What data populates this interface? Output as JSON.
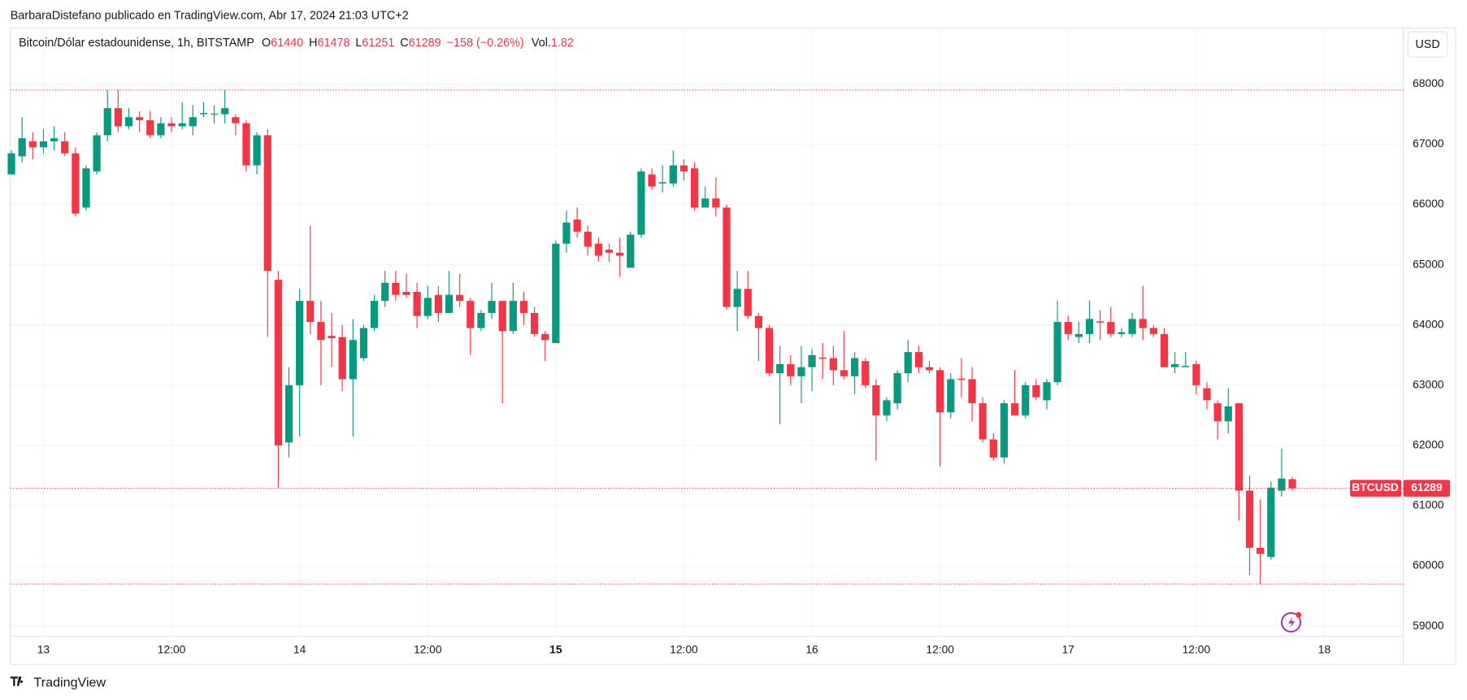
{
  "header": {
    "publisher": "BarbaraDistefano publicado en TradingView.com, Abr 17, 2024 21:03 UTC+2"
  },
  "legend": {
    "symbol": "Bitcoin/Dólar estadounidense, 1h, BITSTAMP",
    "o": "O",
    "h": "H",
    "l": "L",
    "c": "C",
    "change": "−158 (−0.26%)",
    "vol_label": "Vol.",
    "vol": 1.82
  },
  "currency_button": "USD",
  "ticker": "BTCUSD",
  "footer": "TradingView",
  "chart_data": {
    "type": "candlestick",
    "up_color": "#089981",
    "down_color": "#f23645",
    "open": [
      66500,
      66800,
      67050,
      66950,
      67050,
      67050,
      66850,
      65950,
      66550,
      67150,
      67600,
      67300,
      67450,
      67400,
      67150,
      67350,
      67300,
      67300,
      67500,
      67500,
      67500,
      67450,
      67350,
      66650,
      67150,
      64750,
      62050,
      63000,
      64400,
      64050,
      63820,
      63800,
      63100,
      63450,
      63950,
      64400,
      64700,
      64550,
      64550,
      64150,
      64500,
      64200,
      64500,
      64400,
      63950,
      64200,
      64400,
      63900,
      64400,
      64200,
      63850,
      63700,
      65350,
      65750,
      65550,
      65350,
      65250,
      65200,
      64950,
      65500,
      66500,
      66350,
      66350,
      66650,
      66600,
      65950,
      66100,
      65950,
      64300,
      64600,
      64150,
      63950,
      63200,
      63350,
      63150,
      63300,
      63460,
      63450,
      63250,
      63150,
      63400,
      63000,
      62500,
      62700,
      63200,
      63550,
      63300,
      63250,
      62550,
      63110,
      63100,
      62700,
      62100,
      61800,
      62700,
      62500,
      63000,
      62750,
      63050,
      64050,
      63800,
      63850,
      64060,
      64050,
      63850,
      63850,
      64100,
      63950,
      63850,
      63300,
      63300,
      63350,
      62950,
      62700,
      62400,
      62700,
      61250,
      60300,
      60150,
      61250,
      61440
    ],
    "high": [
      66900,
      67450,
      67200,
      67250,
      67300,
      67200,
      66950,
      66650,
      67200,
      67900,
      67900,
      67600,
      67550,
      67550,
      67450,
      67450,
      67700,
      67650,
      67700,
      67650,
      67900,
      67500,
      67400,
      67200,
      67250,
      64900,
      63300,
      64600,
      65650,
      64400,
      64200,
      64000,
      64100,
      64000,
      64500,
      64900,
      64900,
      64850,
      64700,
      64650,
      64650,
      64900,
      64850,
      64450,
      64250,
      64700,
      64400,
      64700,
      64550,
      64300,
      63900,
      65400,
      65900,
      65950,
      65650,
      65450,
      65350,
      65450,
      65550,
      66600,
      66600,
      66650,
      66900,
      66750,
      66700,
      66300,
      66450,
      66000,
      64900,
      64900,
      64200,
      64000,
      63650,
      63500,
      63650,
      63600,
      63700,
      63650,
      63900,
      63550,
      63450,
      63100,
      62800,
      63250,
      63750,
      63650,
      63400,
      63300,
      63200,
      63450,
      63300,
      62800,
      62200,
      62750,
      63250,
      63050,
      63100,
      63100,
      64400,
      64150,
      64050,
      64400,
      64250,
      64300,
      63950,
      64200,
      64650,
      64000,
      63950,
      63550,
      63550,
      63400,
      63050,
      62750,
      62950,
      62700,
      61500,
      61100,
      61400,
      61950,
      61478
    ],
    "low": [
      66500,
      66700,
      66750,
      66850,
      66900,
      66800,
      65800,
      65900,
      66500,
      67050,
      67200,
      67250,
      67200,
      67100,
      67100,
      67200,
      67250,
      67150,
      67450,
      67350,
      67350,
      67150,
      66550,
      66500,
      63800,
      61300,
      61800,
      62150,
      63850,
      63000,
      63300,
      62900,
      62150,
      63400,
      63900,
      64300,
      64400,
      64450,
      63950,
      64100,
      64050,
      64200,
      64300,
      63500,
      63900,
      64100,
      62700,
      63850,
      64000,
      63800,
      63400,
      63700,
      65200,
      65450,
      65150,
      65050,
      65050,
      64800,
      64950,
      65450,
      66250,
      66200,
      66300,
      66400,
      65900,
      65950,
      65800,
      64250,
      63900,
      64100,
      63400,
      63150,
      62350,
      63000,
      62700,
      62900,
      63100,
      63000,
      63100,
      62850,
      62950,
      61750,
      62400,
      62600,
      63050,
      63200,
      63200,
      61650,
      62450,
      62800,
      62400,
      62050,
      61750,
      61700,
      62500,
      62450,
      62750,
      62600,
      63000,
      63750,
      63700,
      63700,
      63750,
      63800,
      63800,
      63800,
      63750,
      63800,
      63300,
      63200,
      63300,
      62850,
      62600,
      62100,
      62200,
      60750,
      59850,
      59700,
      60100,
      61150,
      61251
    ],
    "close": [
      66850,
      67100,
      66950,
      67050,
      67100,
      66850,
      65850,
      66600,
      67150,
      67600,
      67300,
      67450,
      67400,
      67150,
      67350,
      67300,
      67350,
      67450,
      67520,
      67510,
      67600,
      67350,
      66650,
      67150,
      64900,
      62000,
      63000,
      64400,
      64050,
      63750,
      63780,
      63100,
      63750,
      63950,
      64400,
      64700,
      64500,
      64500,
      64150,
      64450,
      64200,
      64500,
      64400,
      63950,
      64200,
      64400,
      63900,
      64400,
      64200,
      63850,
      63750,
      65350,
      65700,
      65550,
      65300,
      65150,
      65200,
      65150,
      65500,
      66550,
      66300,
      66370,
      66650,
      66550,
      65950,
      66100,
      65950,
      64300,
      64600,
      64150,
      63950,
      63200,
      63350,
      63150,
      63300,
      63500,
      63440,
      63250,
      63150,
      63450,
      63000,
      62500,
      62750,
      63200,
      63550,
      63300,
      63250,
      62550,
      63100,
      63090,
      62700,
      62100,
      61800,
      62700,
      62500,
      63000,
      62800,
      63050,
      64050,
      63850,
      63850,
      64100,
      64040,
      63850,
      63880,
      64100,
      63950,
      63850,
      63300,
      63350,
      63320,
      63000,
      62750,
      62400,
      62650,
      61250,
      60300,
      60200,
      61300,
      61450,
      61289
    ],
    "xlim": [
      -0.1,
      130.4
    ],
    "xticks": [
      {
        "value": 3,
        "label": "13"
      },
      {
        "value": 15,
        "label": "12:00"
      },
      {
        "value": 27,
        "label": "14"
      },
      {
        "value": 39,
        "label": "12:00"
      },
      {
        "value": 51,
        "label": "15"
      },
      {
        "value": 63,
        "label": "12:00"
      },
      {
        "value": 75,
        "label": "16"
      },
      {
        "value": 87,
        "label": "12:00"
      },
      {
        "value": 99,
        "label": "17"
      },
      {
        "value": 111,
        "label": "12:00"
      },
      {
        "value": 123,
        "label": "18"
      }
    ],
    "ylim": [
      58830,
      68930
    ],
    "yticks": [
      59000,
      60000,
      61000,
      62000,
      63000,
      64000,
      65000,
      66000,
      67000,
      68000
    ],
    "grid": true
  }
}
